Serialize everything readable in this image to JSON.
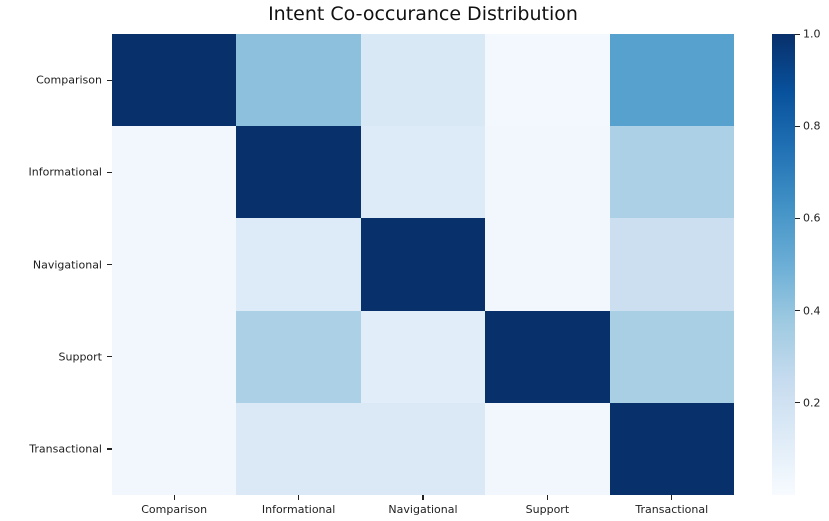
{
  "title": "Intent Co-occurance Distribution",
  "chart_data": {
    "type": "heatmap",
    "title": "Intent Co-occurance Distribution",
    "xlabel": "",
    "ylabel": "",
    "x_categories": [
      "Comparison",
      "Informational",
      "Navigational",
      "Support",
      "Transactional"
    ],
    "y_categories": [
      "Comparison",
      "Informational",
      "Navigational",
      "Support",
      "Transactional"
    ],
    "matrix": [
      [
        1.0,
        0.42,
        0.15,
        0.02,
        0.56
      ],
      [
        0.03,
        1.0,
        0.13,
        0.03,
        0.33
      ],
      [
        0.03,
        0.13,
        1.0,
        0.03,
        0.22
      ],
      [
        0.03,
        0.33,
        0.11,
        1.0,
        0.34
      ],
      [
        0.03,
        0.14,
        0.14,
        0.03,
        1.0
      ]
    ],
    "vmin": 0.0,
    "vmax": 1.0,
    "colormap": "Blues",
    "colormap_stops": [
      {
        "pos": 0.0,
        "color": "#f7fbff"
      },
      {
        "pos": 0.125,
        "color": "#deebf7"
      },
      {
        "pos": 0.25,
        "color": "#c6dbef"
      },
      {
        "pos": 0.375,
        "color": "#9ecae1"
      },
      {
        "pos": 0.5,
        "color": "#6baed6"
      },
      {
        "pos": 0.625,
        "color": "#4292c6"
      },
      {
        "pos": 0.75,
        "color": "#2171b5"
      },
      {
        "pos": 0.875,
        "color": "#08519c"
      },
      {
        "pos": 1.0,
        "color": "#08306b"
      }
    ],
    "colorbar": {
      "position": "right",
      "tick_labels": [
        "1.0",
        "0.8",
        "0.6",
        "0.4",
        "0.2"
      ],
      "tick_values": [
        1.0,
        0.8,
        0.6,
        0.4,
        0.2
      ]
    },
    "grid": false,
    "legend_position": "none"
  },
  "colors": {
    "background": "#ffffff",
    "text": "#1f1f1f",
    "diagonal_max": "#08306b",
    "lowest": "#f7fbff",
    "tick": "#222222"
  }
}
